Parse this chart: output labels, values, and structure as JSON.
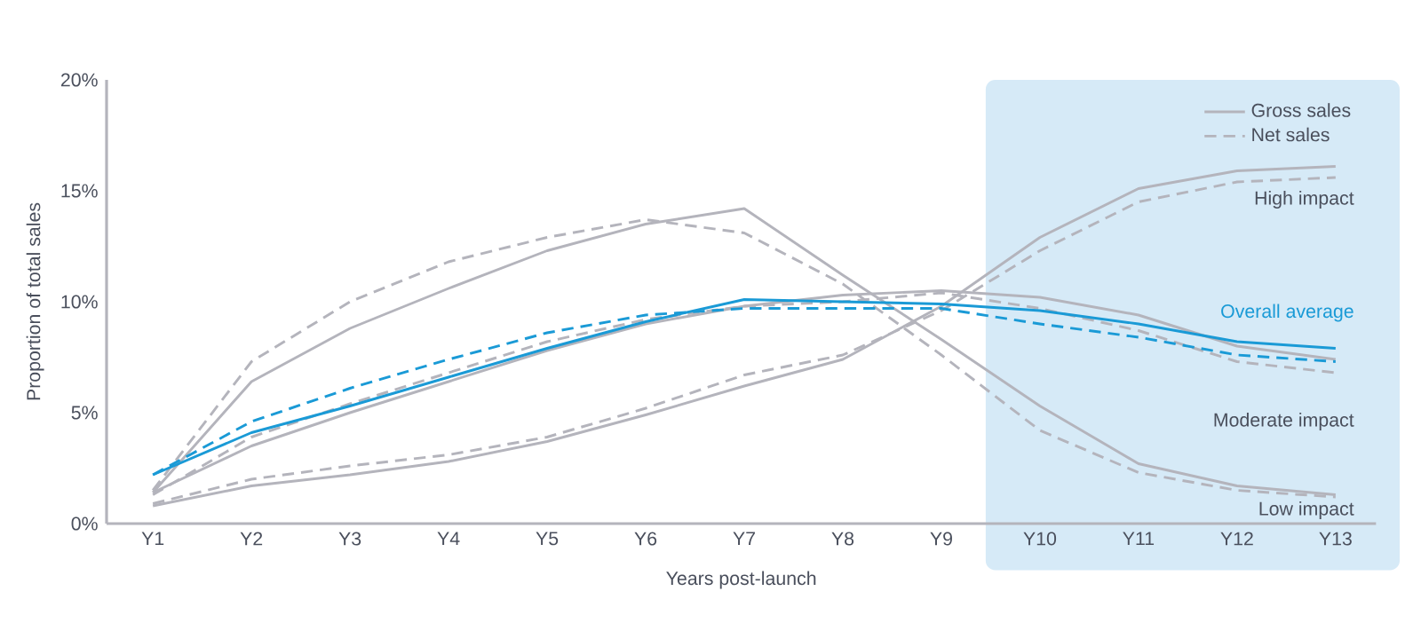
{
  "chart_data": {
    "type": "line",
    "xlabel": "Years post-launch",
    "ylabel": "Proportion of total sales",
    "categories": [
      "Y1",
      "Y2",
      "Y3",
      "Y4",
      "Y5",
      "Y6",
      "Y7",
      "Y8",
      "Y9",
      "Y10",
      "Y11",
      "Y12",
      "Y13"
    ],
    "ylim": [
      0,
      20
    ],
    "yticks": [
      {
        "value": 0,
        "label": "0%"
      },
      {
        "value": 5,
        "label": "5%"
      },
      {
        "value": 10,
        "label": "10%"
      },
      {
        "value": 15,
        "label": "15%"
      },
      {
        "value": 20,
        "label": "20%"
      }
    ],
    "legend": "top right",
    "bands": [
      {
        "axis": "x",
        "from": "Y10",
        "to": "Y13",
        "color": "#d6eaf7"
      }
    ],
    "series": [
      {
        "name": "Gross sales",
        "color": "#b4b4bc",
        "line_style": "solid",
        "values": [
          0.8,
          1.7,
          2.2,
          2.8,
          3.7,
          4.9,
          6.2,
          7.4,
          9.8,
          12.9,
          15.1,
          15.9,
          16.1
        ]
      },
      {
        "name": "Net sales",
        "color": "#b4b4bc",
        "line_style": "dashed",
        "values": [
          0.9,
          2.0,
          2.6,
          3.1,
          3.9,
          5.2,
          6.7,
          7.6,
          9.6,
          12.3,
          14.5,
          15.4,
          15.6
        ]
      },
      {
        "color": "#b4b4bc",
        "line_style": "solid",
        "values": [
          1.4,
          6.4,
          8.8,
          10.6,
          12.3,
          13.5,
          14.2,
          11.2,
          8.3,
          5.3,
          2.7,
          1.7,
          1.3
        ]
      },
      {
        "color": "#b4b4bc",
        "line_style": "dashed",
        "values": [
          1.5,
          7.3,
          10.0,
          11.8,
          12.9,
          13.7,
          13.1,
          10.8,
          7.6,
          4.2,
          2.3,
          1.5,
          1.2
        ]
      },
      {
        "color": "#b4b4bc",
        "line_style": "solid",
        "values": [
          1.4,
          3.5,
          5.0,
          6.4,
          7.8,
          9.0,
          9.8,
          10.3,
          10.5,
          10.2,
          9.4,
          8.0,
          7.4
        ]
      },
      {
        "color": "#b4b4bc",
        "line_style": "dashed",
        "values": [
          1.3,
          3.9,
          5.4,
          6.8,
          8.2,
          9.2,
          9.8,
          10.0,
          10.4,
          9.7,
          8.7,
          7.3,
          6.8
        ]
      },
      {
        "color": "#1a9ad6",
        "line_style": "solid",
        "values": [
          2.2,
          4.1,
          5.3,
          6.6,
          7.9,
          9.1,
          10.1,
          10.0,
          9.9,
          9.6,
          9.0,
          8.2,
          7.9
        ]
      },
      {
        "color": "#1a9ad6",
        "line_style": "dashed",
        "values": [
          2.2,
          4.6,
          6.1,
          7.4,
          8.6,
          9.4,
          9.7,
          9.7,
          9.7,
          9.0,
          8.4,
          7.6,
          7.3
        ]
      }
    ],
    "annotations": [
      "High impact",
      "Overall average",
      "Moderate impact",
      "Low impact"
    ]
  }
}
